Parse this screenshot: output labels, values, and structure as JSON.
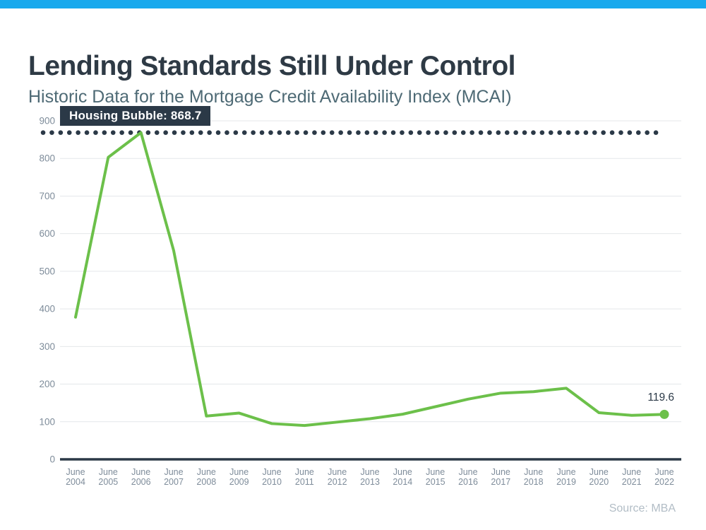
{
  "page": {
    "title": "Lending Standards Still Under Control",
    "subtitle": "Historic Data for the Mortgage Credit Availability Index (MCAI)",
    "source": "Source: MBA",
    "accent_bar_color": "#18a9ed"
  },
  "annotation": {
    "label": "Housing Bubble: 868.7",
    "bg_color": "#2b3947",
    "text_color": "#ffffff"
  },
  "end_label": "119.6",
  "chart_data": {
    "type": "line",
    "title": "Historic Data for the Mortgage Credit Availability Index (MCAI)",
    "categories": [
      "June 2004",
      "June 2005",
      "June 2006",
      "June 2007",
      "June 2008",
      "June 2009",
      "June 2010",
      "June 2011",
      "June 2012",
      "June 2013",
      "June 2014",
      "June 2015",
      "June 2016",
      "June 2017",
      "June 2018",
      "June 2019",
      "June 2020",
      "June 2021",
      "June 2022"
    ],
    "series": [
      {
        "name": "MCAI",
        "values": [
          378,
          803,
          868.7,
          555,
          115,
          123,
          95,
          90,
          99,
          108,
          120,
          140,
          160,
          176,
          180,
          189,
          124,
          117,
          119.6
        ]
      }
    ],
    "reference_line": {
      "label": "Housing Bubble: 868.7",
      "value": 868.7,
      "style": "dotted"
    },
    "last_point_label": "119.6",
    "ylim": [
      0,
      900
    ],
    "y_ticks": [
      0,
      100,
      200,
      300,
      400,
      500,
      600,
      700,
      800,
      900
    ],
    "grid": true,
    "legend": "none",
    "colors": {
      "line": "#6cc04a",
      "marker": "#6cc04a",
      "reference": "#2b3947",
      "axis": "#2b3947",
      "gridline": "#e4e7ea",
      "tick_label": "#7e8c9a"
    }
  }
}
